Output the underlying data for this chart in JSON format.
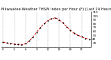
{
  "title": "Milwaukee Weather THSW Index per Hour (F) (Last 24 Hours)",
  "background_color": "#ffffff",
  "plot_background": "#ffffff",
  "line_color": "#dd0000",
  "marker_color": "#000000",
  "grid_color": "#999999",
  "y_label_color": "#000000",
  "ylim": [
    20,
    110
  ],
  "yticks": [
    30,
    40,
    50,
    60,
    70,
    80,
    90,
    100,
    110
  ],
  "hours": [
    0,
    1,
    2,
    3,
    4,
    5,
    6,
    7,
    8,
    9,
    10,
    11,
    12,
    13,
    14,
    15,
    16,
    17,
    18,
    19,
    20,
    21,
    22,
    23
  ],
  "values": [
    32,
    30,
    28,
    27,
    26,
    25,
    28,
    35,
    45,
    58,
    70,
    80,
    88,
    93,
    95,
    90,
    82,
    72,
    63,
    55,
    50,
    46,
    42,
    40
  ],
  "title_fontsize": 3.8,
  "tick_fontsize": 3.0,
  "ylabel_fontsize": 3.0,
  "line_width": 0.7,
  "marker_size": 1.2,
  "linestyle": "--"
}
